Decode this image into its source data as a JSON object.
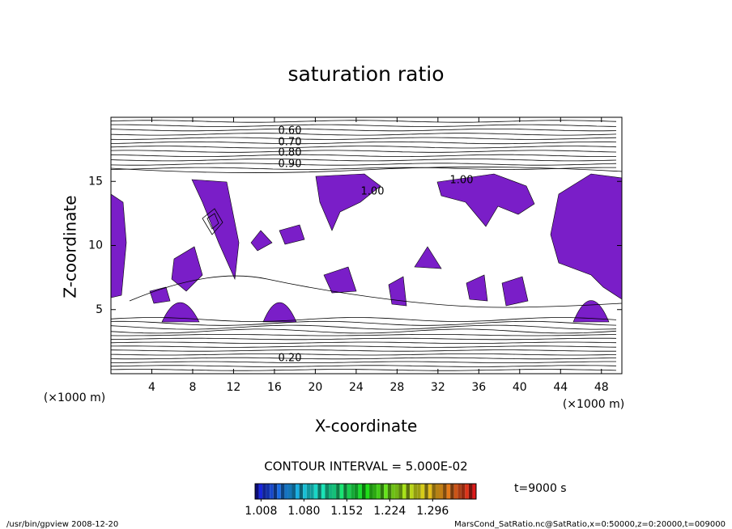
{
  "chart_data": {
    "type": "contour",
    "title": "saturation ratio",
    "xlabel": "X-coordinate",
    "ylabel": "Z-coordinate",
    "xunit": "(×1000 m)",
    "yunit": "(×1000 m)",
    "xlim": [
      0,
      50
    ],
    "ylim": [
      0,
      20
    ],
    "xticks": [
      4,
      8,
      12,
      16,
      20,
      24,
      28,
      32,
      36,
      40,
      44,
      48
    ],
    "yticks": [
      5,
      10,
      15
    ],
    "contour_labels": [
      "0.60",
      "0.70",
      "0.80",
      "0.90",
      "1.00",
      "1.00",
      "0.20"
    ],
    "contour_interval": "CONTOUR INTERVAL = 5.000E-02",
    "fill_color": "#7a1ec8",
    "colorbar_lim": [
      0.998,
      1.369
    ],
    "colorbar_ticks": [
      {
        "value": 1.008,
        "label": "1.008"
      },
      {
        "value": 1.08,
        "label": "1.080"
      },
      {
        "value": 1.152,
        "label": "1.152"
      },
      {
        "value": 1.224,
        "label": "1.224"
      },
      {
        "value": 1.296,
        "label": "1.296"
      }
    ],
    "time_label": "t=9000 s",
    "footer_left": "/usr/bin/gpview  2008-12-20",
    "footer_right": "MarsCond_SatRatio.nc@SatRatio,x=0:50000,z=0:20000,t=009000"
  }
}
